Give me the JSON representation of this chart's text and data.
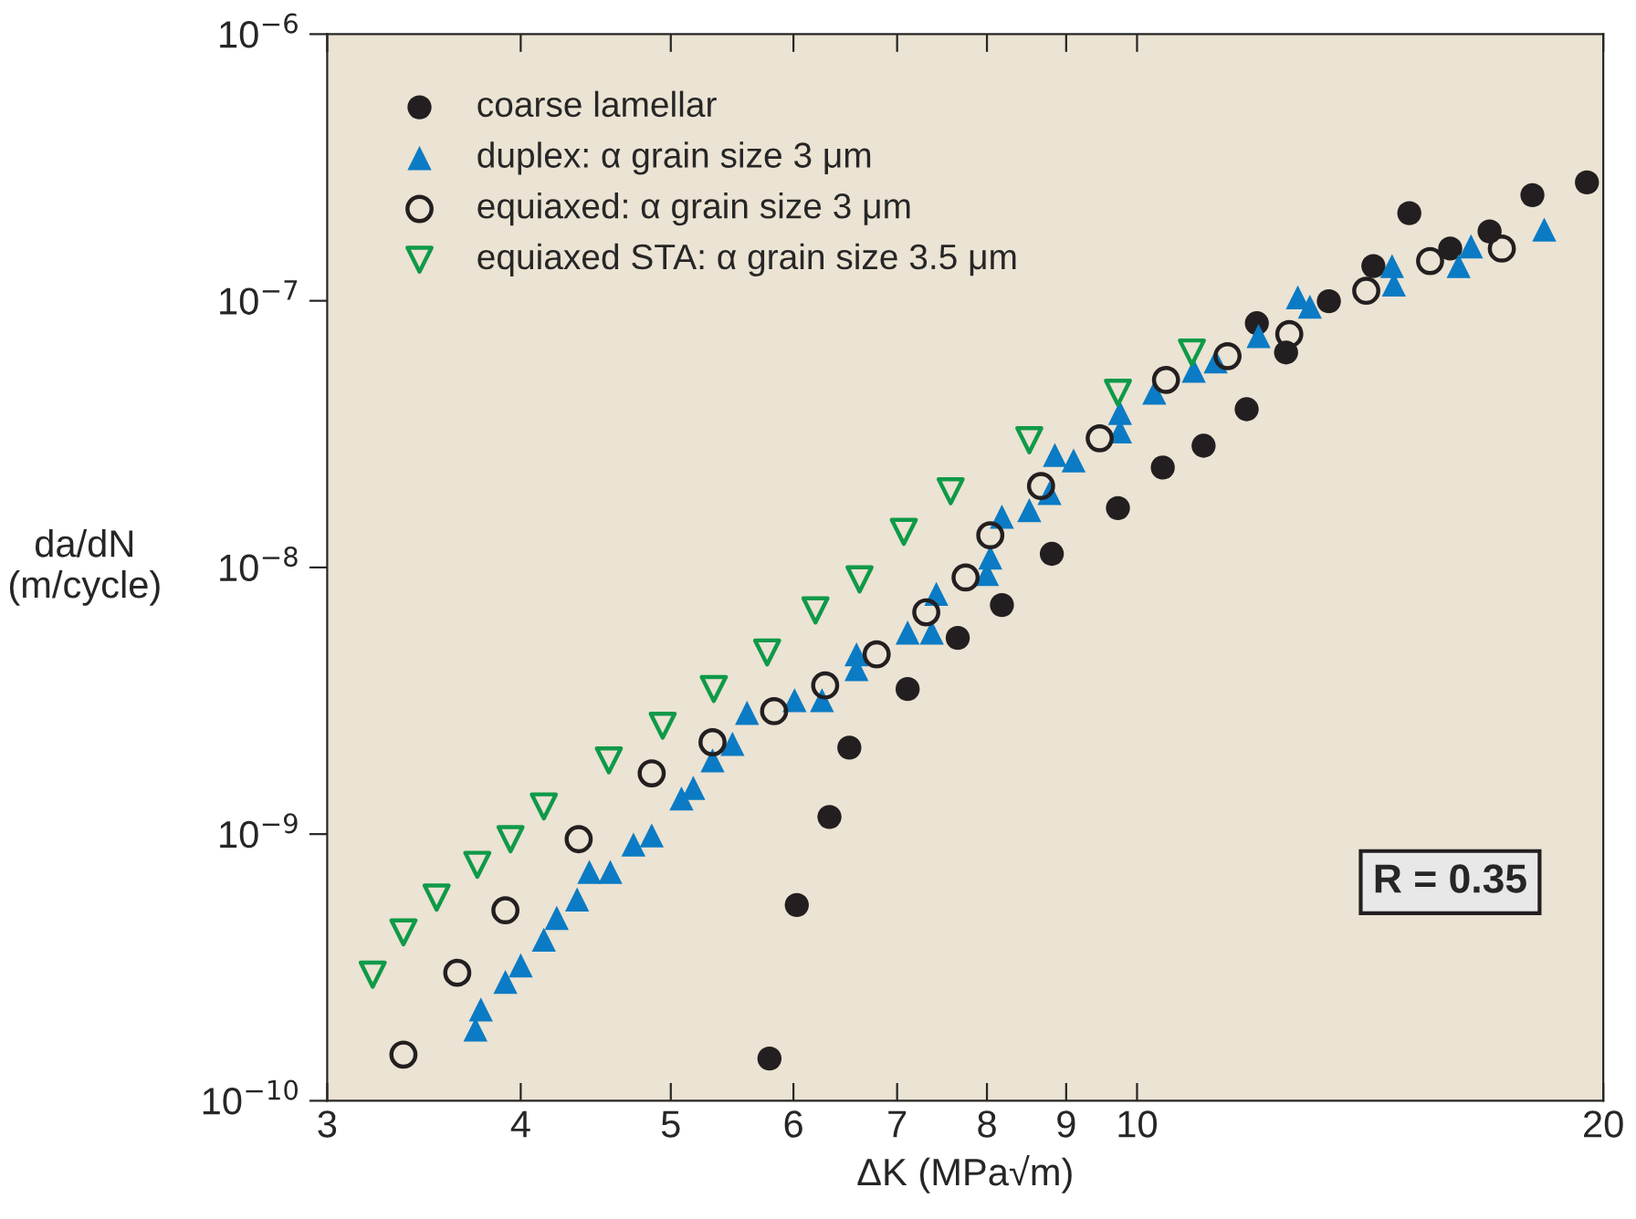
{
  "chart_data": {
    "type": "scatter",
    "xlabel": "ΔK (MPa√m)",
    "ylabel": "da/dN\n(m/cycle)",
    "log": "xy",
    "xlim": [
      3,
      20
    ],
    "xticks": [
      3,
      4,
      5,
      6,
      7,
      8,
      9,
      10,
      20
    ],
    "ylim": [
      1e-10,
      1e-06
    ],
    "yticks": [
      {
        "value": 1e-10,
        "label": "10$^{−10}$"
      },
      {
        "value": 1e-09,
        "label": "10$^{−9}$"
      },
      {
        "value": 1e-08,
        "label": "10$^{−8}$"
      },
      {
        "value": 1e-07,
        "label": "10$^{−7}$"
      },
      {
        "value": 1e-06,
        "label": "10$^{−6}$"
      }
    ],
    "grid": false,
    "legend": "top left",
    "annotations": [
      "R = 0.35"
    ],
    "series": [
      {
        "name": "coarse lamellar",
        "color": "#231f20",
        "marker": "circle",
        "x": [
          5.79,
          6.03,
          6.33,
          6.52,
          7.11,
          7.66,
          8.18,
          8.81,
          9.72,
          10.39,
          11.04,
          11.77,
          11.95,
          12.48,
          13.3,
          14.21,
          14.99,
          15.93,
          16.89,
          18.0,
          19.52
        ],
        "values": [
          1.44e-10,
          5.42e-10,
          1.16e-09,
          2.11e-09,
          3.5e-09,
          5.44e-09,
          7.23e-09,
          1.125e-08,
          1.67e-08,
          2.37e-08,
          2.86e-08,
          3.92e-08,
          8.24e-08,
          6.4e-08,
          9.96e-08,
          1.35e-07,
          2.13e-07,
          1.57e-07,
          1.82e-07,
          2.49e-07,
          2.78e-07
        ]
      },
      {
        "name": "duplex: α grain size 3 μm",
        "color": "#0a7bc4",
        "marker": "triangle",
        "x": [
          3.74,
          3.77,
          3.91,
          4.0,
          4.14,
          4.22,
          4.35,
          4.43,
          4.57,
          4.73,
          4.86,
          5.08,
          5.17,
          5.32,
          5.48,
          5.6,
          6.01,
          6.26,
          6.59,
          6.59,
          7.11,
          7.37,
          7.42,
          8.0,
          8.04,
          8.18,
          8.52,
          8.78,
          8.85,
          9.1,
          9.75,
          9.75,
          10.26,
          10.88,
          11.24,
          11.98,
          12.7,
          12.93,
          14.61,
          14.65,
          16.13,
          16.43,
          18.32
        ],
        "values": [
          1.85e-10,
          2.2e-10,
          2.79e-10,
          3.22e-10,
          4.02e-10,
          4.85e-10,
          5.69e-10,
          7.21e-10,
          7.21e-10,
          9.14e-10,
          9.88e-10,
          1.36e-09,
          1.49e-09,
          1.89e-09,
          2.18e-09,
          2.85e-09,
          3.18e-09,
          3.18e-09,
          4.16e-09,
          4.72e-09,
          5.7e-09,
          5.7e-09,
          7.96e-09,
          9.46e-09,
          1.09e-08,
          1.55e-08,
          1.64e-08,
          1.9e-08,
          2.64e-08,
          2.52e-08,
          3.24e-08,
          3.8e-08,
          4.52e-08,
          5.47e-08,
          5.92e-08,
          7.38e-08,
          1.03e-07,
          9.5e-08,
          1.35e-07,
          1.15e-07,
          1.35e-07,
          1.6e-07,
          1.85e-07
        ]
      },
      {
        "name": "equiaxed: α grain size 3 μm",
        "color": "#231f20",
        "marker": "circle-open",
        "x": [
          3.36,
          3.64,
          3.91,
          4.36,
          4.86,
          5.32,
          5.83,
          6.29,
          6.79,
          7.31,
          7.75,
          8.04,
          8.67,
          9.46,
          10.44,
          11.44,
          12.54,
          14.06,
          15.46,
          17.2
        ],
        "values": [
          1.49e-10,
          3.02e-10,
          5.18e-10,
          9.57e-10,
          1.69e-09,
          2.21e-09,
          2.89e-09,
          3.61e-09,
          4.72e-09,
          6.79e-09,
          9.17e-09,
          1.32e-08,
          2.02e-08,
          3.05e-08,
          5.05e-08,
          6.2e-08,
          7.5e-08,
          1.09e-07,
          1.41e-07,
          1.57e-07
        ]
      },
      {
        "name": "equiaxed STA: α grain size 3.5 μm",
        "color": "#0f9a48",
        "marker": "triangle-down-open",
        "x": [
          3.21,
          3.36,
          3.53,
          3.75,
          3.94,
          4.14,
          4.56,
          4.94,
          5.33,
          5.77,
          6.2,
          6.62,
          7.07,
          7.58,
          8.52,
          9.72,
          10.85
        ],
        "values": [
          2.97e-10,
          4.28e-10,
          5.78e-10,
          7.67e-10,
          9.57e-10,
          1.27e-09,
          1.89e-09,
          2.55e-09,
          3.5e-09,
          4.8e-09,
          6.9e-09,
          9.02e-09,
          1.36e-08,
          1.93e-08,
          3e-08,
          4.52e-08,
          6.4e-08
        ]
      }
    ]
  }
}
